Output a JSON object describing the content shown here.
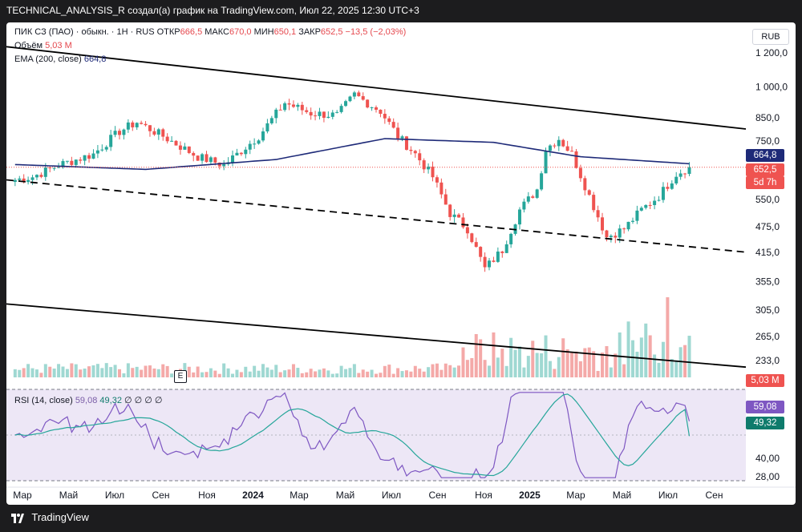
{
  "header": {
    "caption": "TECHNICAL_ANALYSIS_R создал(а) график на TradingView.com, Июл 22, 2025 12:30 UTC+3"
  },
  "legend": {
    "symbol": "ПИК СЗ (ПАО) · обыкн. · 1Н · RUS",
    "open_label": "ОТКР",
    "open_value": "666,5",
    "high_label": "МАКС",
    "high_value": "670,0",
    "low_label": "МИН",
    "low_value": "650,1",
    "close_label": "ЗАКР",
    "close_value": "652,5",
    "change": "−13,5 (−2,03%)",
    "volume_label": "Объём",
    "volume_value": "5,03 M",
    "ema_label": "EMA (200, close)",
    "ema_value": "664,8",
    "rsi_label": "RSI (14, close)",
    "rsi_value": "59,08",
    "rsi_ma_value": "49,32",
    "rsi_extra": "∅ ∅ ∅ ∅"
  },
  "currency": "RUB",
  "badges": {
    "ema": "664,8",
    "price": "652,5",
    "countdown": "5d 7h",
    "volume": "5,03 M",
    "rsi": "59,08",
    "rsi_ma": "49,32"
  },
  "event_marker": "E",
  "footer": {
    "brand": "TradingView"
  },
  "colors": {
    "up": "#26a69a",
    "down": "#ef5350",
    "ema": "#1e2a78",
    "rsi": "#7e57c2",
    "rsi_ma": "#26a69a",
    "rsi_band": "#ede7f6",
    "vol_up": "#9fd8d2",
    "vol_down": "#f4a9a8"
  },
  "chart_data": {
    "type": "candlestick",
    "timeframe": "1W",
    "x_ticks": [
      "Мар",
      "Май",
      "Июл",
      "Сен",
      "Ноя",
      "2024",
      "Мар",
      "Май",
      "Июл",
      "Сен",
      "Ноя",
      "2025",
      "Мар",
      "Май",
      "Июл",
      "Сен"
    ],
    "y_ticks": [
      "1 200,0",
      "1 000,0",
      "850,0",
      "750,0",
      "650,0",
      "550,0",
      "475,0",
      "415,0",
      "355,0",
      "305,0",
      "265,0",
      "233,0"
    ],
    "y_scale": "log",
    "rsi_ticks": [
      "40,00",
      "28,00"
    ],
    "price_keypoints": [
      {
        "t": 0,
        "p": 610
      },
      {
        "t": 4,
        "p": 620
      },
      {
        "t": 10,
        "p": 660
      },
      {
        "t": 18,
        "p": 700
      },
      {
        "t": 24,
        "p": 790
      },
      {
        "t": 28,
        "p": 830
      },
      {
        "t": 34,
        "p": 770
      },
      {
        "t": 42,
        "p": 690
      },
      {
        "t": 48,
        "p": 660
      },
      {
        "t": 56,
        "p": 770
      },
      {
        "t": 62,
        "p": 920
      },
      {
        "t": 68,
        "p": 870
      },
      {
        "t": 74,
        "p": 860
      },
      {
        "t": 78,
        "p": 960
      },
      {
        "t": 84,
        "p": 880
      },
      {
        "t": 88,
        "p": 770
      },
      {
        "t": 92,
        "p": 700
      },
      {
        "t": 96,
        "p": 620
      },
      {
        "t": 100,
        "p": 510
      },
      {
        "t": 104,
        "p": 470
      },
      {
        "t": 108,
        "p": 380
      },
      {
        "t": 112,
        "p": 420
      },
      {
        "t": 116,
        "p": 520
      },
      {
        "t": 120,
        "p": 580
      },
      {
        "t": 122,
        "p": 720
      },
      {
        "t": 125,
        "p": 760
      },
      {
        "t": 128,
        "p": 700
      },
      {
        "t": 132,
        "p": 560
      },
      {
        "t": 136,
        "p": 450
      },
      {
        "t": 140,
        "p": 470
      },
      {
        "t": 144,
        "p": 520
      },
      {
        "t": 148,
        "p": 560
      },
      {
        "t": 152,
        "p": 630
      },
      {
        "t": 155,
        "p": 652.5
      }
    ],
    "ema200": [
      {
        "t": 0,
        "p": 662
      },
      {
        "t": 30,
        "p": 645
      },
      {
        "t": 60,
        "p": 680
      },
      {
        "t": 85,
        "p": 760
      },
      {
        "t": 110,
        "p": 745
      },
      {
        "t": 130,
        "p": 690
      },
      {
        "t": 155,
        "p": 664.8
      }
    ],
    "trendlines": [
      {
        "style": "solid",
        "from": {
          "t": -2,
          "p": 1240
        },
        "to": {
          "t": 168,
          "p": 800
        }
      },
      {
        "style": "dashed",
        "from": {
          "t": -2,
          "p": 610
        },
        "to": {
          "t": 168,
          "p": 415
        }
      },
      {
        "style": "solid",
        "from": {
          "t": -2,
          "p": 315
        },
        "to": {
          "t": 168,
          "p": 225
        }
      }
    ],
    "last_close": 652.5,
    "last_volume": "5,03 M",
    "rsi": {
      "last": 59.08,
      "ma_last": 49.32,
      "upper": 70,
      "lower": 30
    }
  }
}
